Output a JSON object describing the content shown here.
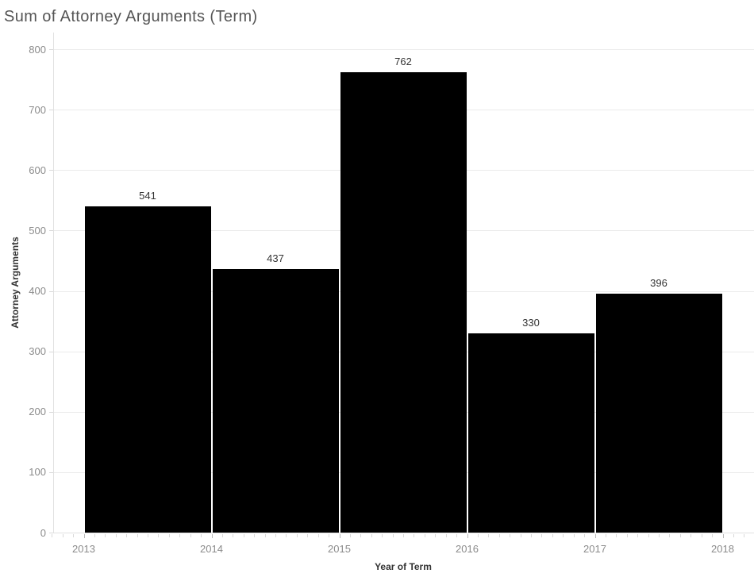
{
  "chart_data": {
    "type": "bar",
    "title": "Sum of Attorney Arguments (Term)",
    "xlabel": "Year of Term",
    "ylabel": "Attorney Arguments",
    "categories": [
      2013,
      2014,
      2015,
      2016,
      2017
    ],
    "values": [
      541,
      437,
      762,
      330,
      396
    ],
    "series": [
      {
        "name": "Sum of Attorney Arguments",
        "values": [
          541,
          437,
          762,
          330,
          396
        ]
      }
    ],
    "x_tick_labels": [
      "2013",
      "2014",
      "2015",
      "2016",
      "2017",
      "2018"
    ],
    "y_tick_labels": [
      "0",
      "100",
      "200",
      "300",
      "400",
      "500",
      "600",
      "700",
      "800"
    ],
    "ylim": [
      0,
      800
    ],
    "xlim_years": [
      2013,
      2018
    ],
    "grid": "horizontal-major",
    "legend_position": "none",
    "minor_tick_interval": "month",
    "colors": {
      "bar": "#000000",
      "title": "#555555",
      "axis_title": "#333333",
      "data_label": "#333333",
      "tick_label": "#8b8b8b",
      "gridline": "#ebebeb",
      "axis_line": "#e1e1e1",
      "major_tick": "#b9b9b9",
      "minor_tick": "#d9d9d9"
    }
  }
}
